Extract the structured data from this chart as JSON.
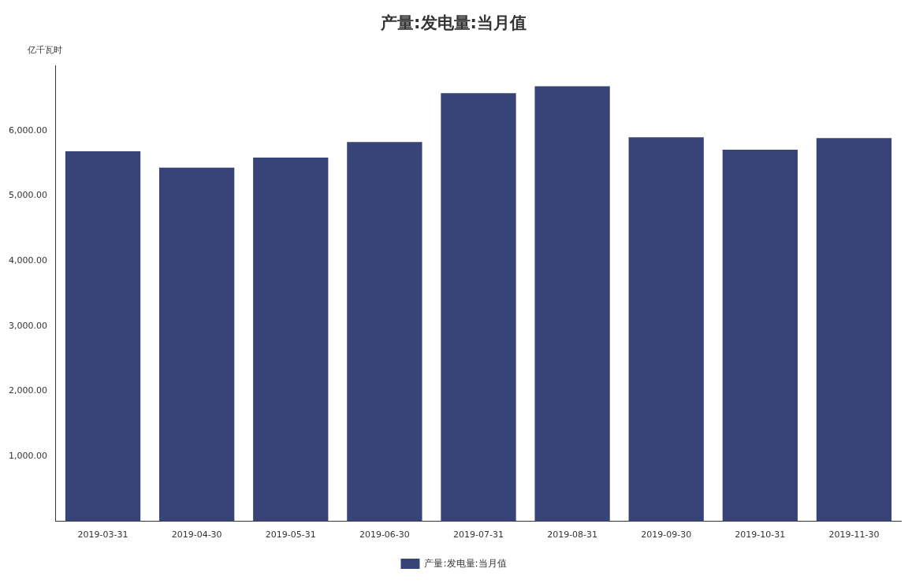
{
  "chart_data": {
    "type": "bar",
    "title": "产量:发电量:当月值",
    "ylabel": "亿千瓦时",
    "categories": [
      "2019-03-31",
      "2019-04-30",
      "2019-05-31",
      "2019-06-30",
      "2019-07-31",
      "2019-08-31",
      "2019-09-30",
      "2019-10-31",
      "2019-11-30"
    ],
    "series": [
      {
        "name": "产量:发电量:当月值",
        "color": "#384478",
        "values": [
          5685,
          5434,
          5588,
          5826,
          6575,
          6683,
          5897,
          5707,
          5886
        ]
      }
    ],
    "ylim": [
      0,
      7000
    ],
    "yticks": [
      {
        "value": 1000,
        "label": "1,000.00"
      },
      {
        "value": 2000,
        "label": "2,000.00"
      },
      {
        "value": 3000,
        "label": "3,000.00"
      },
      {
        "value": 4000,
        "label": "4,000.00"
      },
      {
        "value": 5000,
        "label": "5,000.00"
      },
      {
        "value": 6000,
        "label": "6,000.00"
      }
    ],
    "grid": false,
    "legend": "bottom"
  }
}
